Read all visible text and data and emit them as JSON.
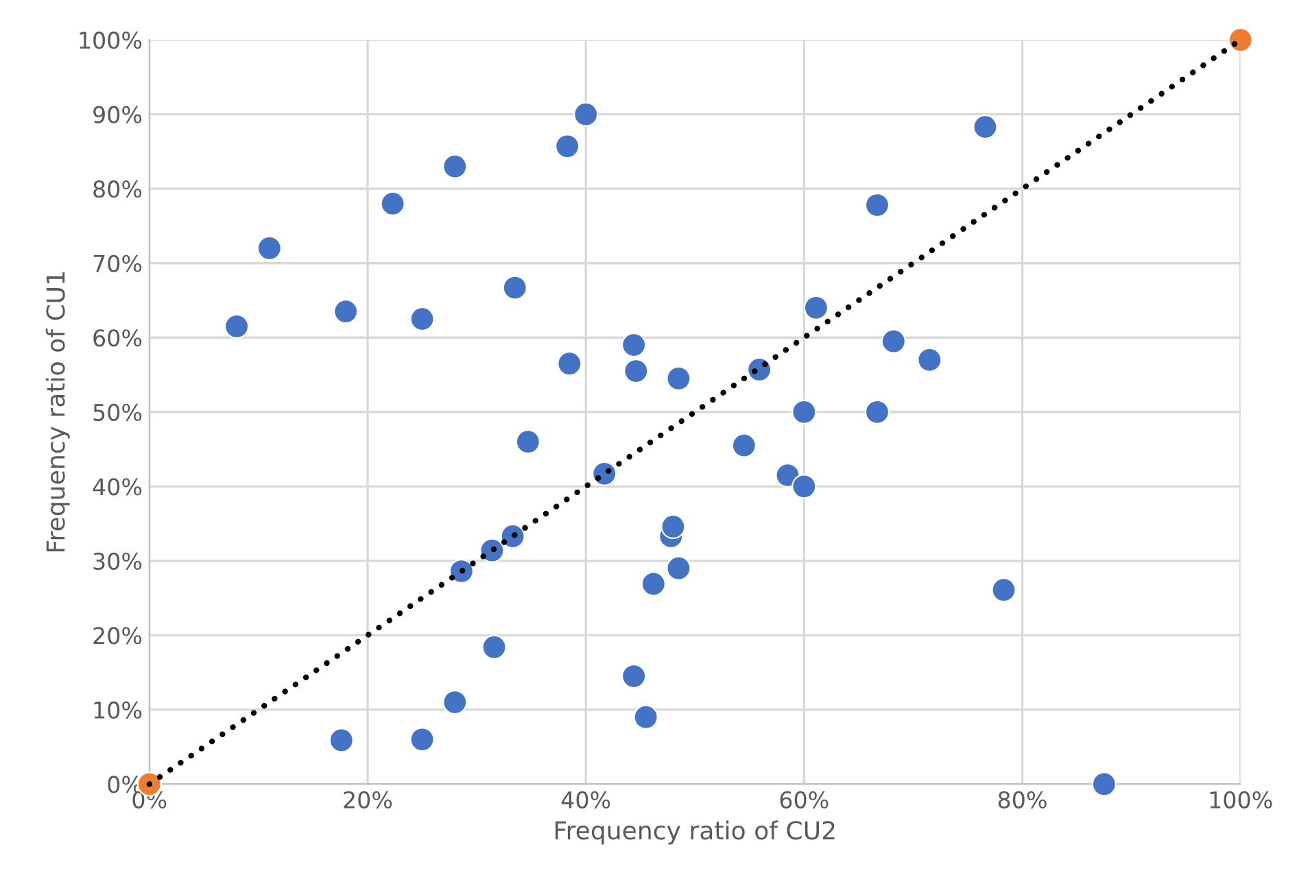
{
  "chart_data": {
    "type": "scatter",
    "xlabel": "Frequency ratio of CU2",
    "ylabel": "Frequency ratio of CU1",
    "xlim": [
      0,
      100
    ],
    "ylim": [
      0,
      100
    ],
    "xticks": [
      {
        "value": 0,
        "label": "0%"
      },
      {
        "value": 20,
        "label": "20%"
      },
      {
        "value": 40,
        "label": "40%"
      },
      {
        "value": 60,
        "label": "60%"
      },
      {
        "value": 80,
        "label": "80%"
      },
      {
        "value": 100,
        "label": "100%"
      }
    ],
    "yticks": [
      {
        "value": 0,
        "label": "0%"
      },
      {
        "value": 10,
        "label": "10%"
      },
      {
        "value": 20,
        "label": "20%"
      },
      {
        "value": 30,
        "label": "30%"
      },
      {
        "value": 40,
        "label": "40%"
      },
      {
        "value": 50,
        "label": "50%"
      },
      {
        "value": 60,
        "label": "60%"
      },
      {
        "value": 70,
        "label": "70%"
      },
      {
        "value": 80,
        "label": "80%"
      },
      {
        "value": 90,
        "label": "90%"
      },
      {
        "value": 100,
        "label": "100%"
      }
    ],
    "grid": true,
    "legend": false,
    "marker": "circle",
    "series": [
      {
        "type": "line",
        "color": "#000000",
        "line_style": "dotted",
        "marker": "none",
        "x": [
          0,
          100
        ],
        "values": [
          0,
          100
        ]
      },
      {
        "color": "#4472c4",
        "x": [
          8,
          11,
          18,
          22.3,
          28,
          25,
          33.5,
          38.3,
          40,
          38.5,
          34.7,
          44.4,
          44.6,
          48.5,
          41.7,
          31.4,
          33.3,
          28.6,
          31.6,
          28,
          25,
          17.6,
          44.4,
          45.5,
          46.2,
          47.8,
          48,
          48.5,
          54.5,
          55.9,
          58.5,
          60,
          60,
          61.1,
          66.7,
          68.2,
          66.7,
          71.5,
          76.6,
          78.3,
          87.5
        ],
        "values": [
          61.5,
          72,
          63.5,
          78,
          83,
          62.5,
          66.7,
          85.7,
          90,
          56.5,
          46,
          59,
          55.5,
          54.5,
          41.7,
          31.4,
          33.3,
          28.6,
          18.4,
          11,
          6,
          5.9,
          14.5,
          9,
          26.9,
          33.3,
          34.6,
          29,
          45.5,
          55.7,
          41.5,
          50,
          40,
          64,
          77.8,
          59.5,
          50,
          57,
          88.3,
          26.1,
          0
        ]
      },
      {
        "color": "#ed7d31",
        "x": [
          0,
          100
        ],
        "values": [
          0,
          100
        ]
      }
    ]
  }
}
